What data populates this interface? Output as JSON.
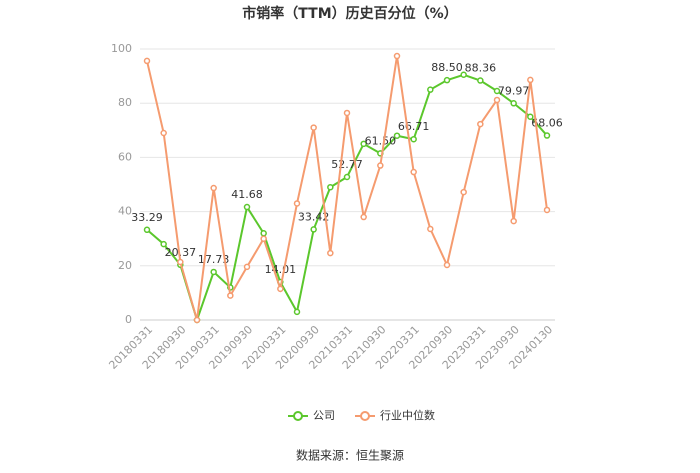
{
  "chart_data": {
    "type": "line",
    "title": "市销率（TTM）历史百分位（%）",
    "source": "数据来源：恒生聚源",
    "categories": [
      "20180331",
      null,
      "20180930",
      null,
      "20190331",
      null,
      "20190930",
      null,
      "20200331",
      null,
      "20200930",
      null,
      "20210331",
      null,
      "20210930",
      null,
      "20220331",
      null,
      "20220930",
      null,
      "20230331",
      null,
      "20230930",
      null,
      "20240130"
    ],
    "series": [
      {
        "name": "公司",
        "color": "#5bc72c",
        "values": [
          33.29,
          28,
          20.37,
          0,
          17.73,
          12,
          41.68,
          32,
          14.01,
          3,
          33.42,
          49,
          52.77,
          65,
          61.5,
          68,
          66.71,
          85,
          88.5,
          90.5,
          88.36,
          84.5,
          79.97,
          75,
          68.06
        ],
        "value_labels": [
          "33.29",
          null,
          "20.37",
          null,
          "17.73",
          null,
          "41.68",
          null,
          "14.01",
          null,
          "33.42",
          null,
          "52.77",
          null,
          "61.50",
          null,
          "66.71",
          null,
          "88.50",
          null,
          "88.36",
          null,
          "79.97",
          null,
          "68.06"
        ]
      },
      {
        "name": "行业中位数",
        "color": "#f59b6f",
        "values": [
          95.6,
          69,
          21.4,
          0,
          48.7,
          9,
          19.6,
          30,
          11.5,
          43,
          71,
          24.7,
          76.4,
          38,
          57,
          97.4,
          54.6,
          33.6,
          20.3,
          47.2,
          72.3,
          81.2,
          36.5,
          88.6,
          40.6
        ]
      }
    ],
    "ylim": [
      0,
      100
    ],
    "yticks": [
      0,
      20,
      40,
      60,
      80,
      100
    ],
    "grid": true
  }
}
